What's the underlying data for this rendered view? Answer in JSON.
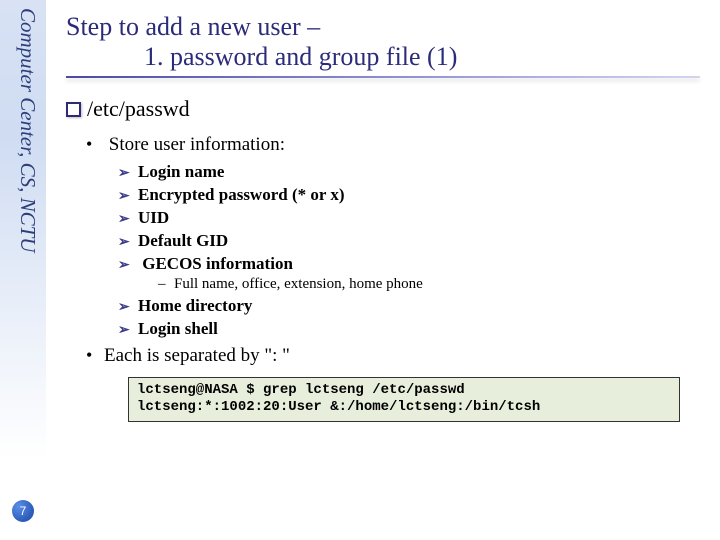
{
  "sidebar": {
    "vertical_label": "Computer Center, CS, NCTU",
    "label_color": "#2c3d7a",
    "label_fontsize": 21,
    "gradient_top": "#d8e2f4",
    "gradient_bottom": "#ffffff"
  },
  "page_number": "7",
  "title": {
    "line1": "Step to add a new user –",
    "line2": "1. password and group file (1)",
    "color": "#2b2b7a",
    "fontsize": 26,
    "underline_from": "#4a4aa5",
    "underline_to": "#d4d4f0"
  },
  "section": {
    "heading": "/etc/passwd",
    "heading_fontsize": 22,
    "box_border_color": "#2b2b7a",
    "items": [
      {
        "text": "Store user information:",
        "sub": [
          {
            "text": "Login name"
          },
          {
            "text": "Encrypted password (* or x)"
          },
          {
            "text": "UID"
          },
          {
            "text": "Default GID"
          },
          {
            "text": "GECOS information",
            "subsub": [
              {
                "text": "Full name, office, extension, home phone"
              }
            ]
          },
          {
            "text": "Home directory"
          },
          {
            "text": "Login shell"
          }
        ]
      },
      {
        "text": "Each is separated by \": \""
      }
    ]
  },
  "code": {
    "line1": "lctseng@NASA $ grep lctseng /etc/passwd",
    "line2": "lctseng:*:1002:20:User &:/home/lctseng:/bin/tcsh",
    "background": "#e8eedc",
    "border": "#333333",
    "font": "Consolas",
    "fontsize": 14
  }
}
